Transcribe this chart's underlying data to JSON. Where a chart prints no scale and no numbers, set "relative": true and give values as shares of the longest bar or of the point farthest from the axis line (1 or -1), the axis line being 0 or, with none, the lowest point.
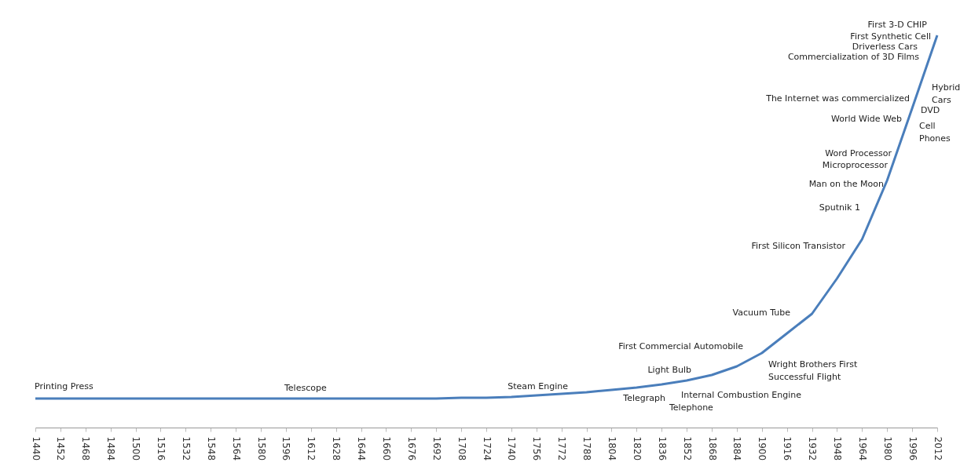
{
  "chart_data": {
    "type": "line",
    "relative": true,
    "grid": false,
    "categories": [
      "1440",
      "1452",
      "1468",
      "1484",
      "1500",
      "1516",
      "1532",
      "1548",
      "1564",
      "1580",
      "1596",
      "1612",
      "1628",
      "1644",
      "1660",
      "1676",
      "1692",
      "1708",
      "1724",
      "1740",
      "1756",
      "1772",
      "1788",
      "1804",
      "1820",
      "1836",
      "1852",
      "1868",
      "1884",
      "1900",
      "1916",
      "1932",
      "1948",
      "1964",
      "1980",
      "1996",
      "2012"
    ],
    "series": [
      {
        "color": "#4a7ebb",
        "values": [
          0.074,
          0.074,
          0.074,
          0.074,
          0.074,
          0.074,
          0.074,
          0.074,
          0.074,
          0.074,
          0.074,
          0.074,
          0.074,
          0.074,
          0.074,
          0.074,
          0.074,
          0.076,
          0.076,
          0.078,
          0.082,
          0.086,
          0.09,
          0.096,
          0.102,
          0.11,
          0.12,
          0.134,
          0.156,
          0.19,
          0.24,
          0.29,
          0.38,
          0.48,
          0.63,
          0.814,
          1
        ]
      }
    ],
    "annotations": [
      "First 3-D CHIP",
      "First Synthetic Cell",
      "Driverless Cars",
      "Commercialization of 3D Films",
      "The Internet was commercialized",
      "World Wide Web",
      "Word Processor",
      "Microprocessor",
      "Man on the Moon",
      "Sputnik 1",
      "First Silicon Transistor",
      "Vacuum Tube",
      "First Commercial Automobile",
      "Light Bulb",
      "Steam Engine",
      "Telegraph",
      "Printing Press",
      "Telescope",
      "Wright Brothers First\nSuccessful Flight",
      "Internal Combustion Engine",
      "Telephone",
      "Hybrid\nCars",
      "DVD",
      "Cell\nPhones"
    ]
  }
}
